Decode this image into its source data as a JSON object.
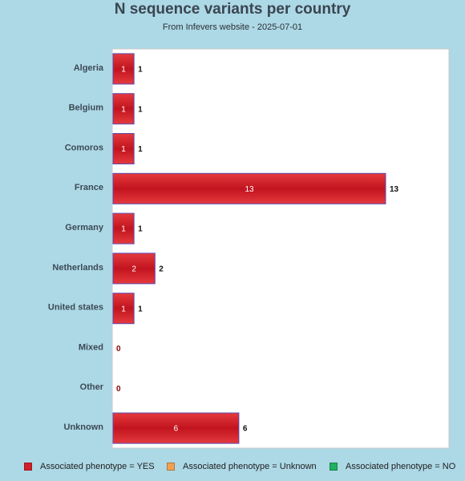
{
  "chart_data": {
    "type": "bar",
    "orientation": "horizontal",
    "title": "N sequence variants per country",
    "subtitle": "From Infevers website - 2025-07-01",
    "categories": [
      "Algeria",
      "Belgium",
      "Comoros",
      "France",
      "Germany",
      "Netherlands",
      "United states",
      "Mixed",
      "Other",
      "Unknown"
    ],
    "series": [
      {
        "name": "Associated phenotype = YES",
        "color": "#d0202b",
        "values": [
          1,
          1,
          1,
          13,
          1,
          2,
          1,
          0,
          0,
          6
        ]
      },
      {
        "name": "Associated phenotype = Unknown",
        "color": "#f0a050",
        "values": [
          0,
          0,
          0,
          0,
          0,
          0,
          0,
          0,
          0,
          0
        ]
      },
      {
        "name": "Associated phenotype = NO",
        "color": "#20b060",
        "values": [
          0,
          0,
          0,
          0,
          0,
          0,
          0,
          0,
          0,
          0
        ]
      }
    ],
    "totals": [
      1,
      1,
      1,
      13,
      1,
      2,
      1,
      0,
      0,
      6
    ],
    "xlim": [
      0,
      16
    ],
    "grid": false,
    "legend_position": "bottom",
    "colors": {
      "background": "#add8e6",
      "plot_background": "#ffffff",
      "bar_border": "#5b4bb0",
      "zero_label": "#8b0000"
    }
  }
}
